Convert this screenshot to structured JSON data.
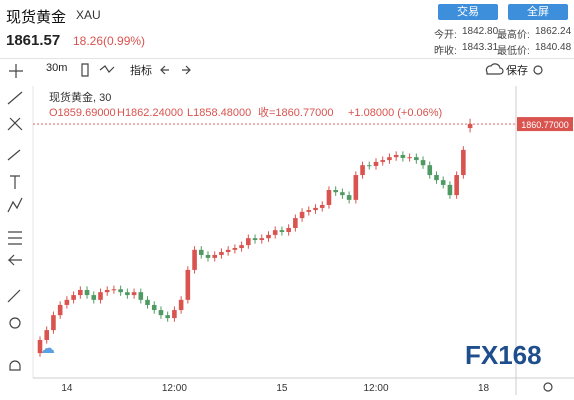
{
  "header": {
    "title": "现货黄金",
    "symbol": "XAU",
    "price": "1861.57",
    "change": "18.26(0.99%)",
    "buttons": [
      "交易",
      "全屏"
    ],
    "stats": [
      [
        "今开:",
        "1842.80",
        "最高价:",
        "1862.24"
      ],
      [
        "昨收:",
        "1843.31",
        "最低价:",
        "1840.48"
      ]
    ]
  },
  "toolbar": {
    "interval": "30m",
    "indicators": "指标",
    "save": "保存"
  },
  "chart_data": {
    "type": "candlestick",
    "legend_title": "现货黄金, 30",
    "legend_ohlc": [
      "O1859.69000",
      "H1862.24000",
      "L1858.48000",
      "收=1860.77000",
      "+1.08000 (+0.06%)"
    ],
    "last_price_label": "1860.77000",
    "watermark": "FX168",
    "up_color": "#d9534f",
    "down_color": "#4f9a63",
    "ylim": [
      1792,
      1866
    ],
    "categories": [
      null,
      null,
      null,
      null,
      "14",
      null,
      null,
      null,
      null,
      null,
      null,
      null,
      null,
      null,
      null,
      null,
      null,
      null,
      null,
      null,
      "12:00",
      null,
      null,
      null,
      null,
      null,
      null,
      null,
      null,
      null,
      null,
      null,
      null,
      null,
      null,
      null,
      "15",
      null,
      null,
      null,
      null,
      null,
      null,
      null,
      null,
      null,
      null,
      null,
      null,
      null,
      "12:00",
      null,
      null,
      null,
      null,
      null,
      null,
      null,
      null,
      null,
      null,
      null,
      null,
      null,
      null,
      null,
      "18"
    ],
    "open": [
      1798.0,
      1801.6,
      1804.3,
      1808.4,
      1811.2,
      1812.6,
      1813.9,
      1815.3,
      1813.9,
      1812.6,
      1814.7,
      1815.3,
      1815.5,
      1814.7,
      1813.9,
      1814.7,
      1812.6,
      1811.2,
      1809.8,
      1808.4,
      1807.6,
      1809.8,
      1812.6,
      1820.8,
      1826.3,
      1824.9,
      1824.1,
      1824.9,
      1825.7,
      1826.3,
      1826.8,
      1827.6,
      1829.5,
      1829.0,
      1829.5,
      1830.4,
      1831.7,
      1831.2,
      1832.3,
      1835.0,
      1836.7,
      1837.2,
      1837.8,
      1838.6,
      1842.7,
      1842.1,
      1841.3,
      1840.0,
      1846.8,
      1849.5,
      1849.3,
      1850.4,
      1850.9,
      1851.7,
      1852.3,
      1851.5,
      1851.7,
      1850.9,
      1849.5,
      1846.8,
      1845.4,
      1844.1,
      1841.3,
      1846.8,
      1859.69,
      null,
      null
    ],
    "high": [
      1802.6,
      1805.3,
      1809.4,
      1812.2,
      1813.6,
      1814.9,
      1816.3,
      1816.3,
      1814.9,
      1815.7,
      1816.3,
      1816.5,
      1816.5,
      1815.7,
      1815.7,
      1815.7,
      1813.6,
      1812.2,
      1810.8,
      1809.4,
      1810.8,
      1813.6,
      1821.8,
      1827.3,
      1827.3,
      1825.9,
      1825.9,
      1826.7,
      1827.3,
      1827.8,
      1828.6,
      1830.5,
      1830.5,
      1830.5,
      1831.4,
      1832.7,
      1832.7,
      1833.3,
      1836.0,
      1837.7,
      1838.2,
      1838.8,
      1839.6,
      1843.7,
      1843.7,
      1843.1,
      1842.3,
      1847.8,
      1850.5,
      1850.5,
      1851.4,
      1851.9,
      1852.7,
      1853.3,
      1853.3,
      1852.7,
      1852.7,
      1851.9,
      1850.5,
      1847.8,
      1846.4,
      1845.1,
      1847.8,
      1854.7,
      1862.24,
      null,
      null
    ],
    "low": [
      1797.0,
      1800.6,
      1803.3,
      1807.4,
      1810.2,
      1811.6,
      1812.9,
      1812.9,
      1811.6,
      1811.6,
      1813.7,
      1814.3,
      1813.7,
      1812.9,
      1812.9,
      1811.6,
      1810.2,
      1808.8,
      1807.4,
      1806.6,
      1806.6,
      1808.8,
      1811.6,
      1819.8,
      1823.9,
      1823.1,
      1823.1,
      1823.9,
      1824.7,
      1825.3,
      1825.8,
      1826.6,
      1828.0,
      1828.0,
      1828.5,
      1829.4,
      1830.2,
      1830.2,
      1831.3,
      1834.0,
      1835.7,
      1836.2,
      1836.8,
      1837.6,
      1841.1,
      1840.3,
      1839.0,
      1839.0,
      1845.8,
      1848.3,
      1848.3,
      1849.4,
      1849.9,
      1850.7,
      1850.5,
      1850.5,
      1849.9,
      1848.5,
      1845.8,
      1844.4,
      1843.1,
      1840.3,
      1840.3,
      1845.8,
      1858.48,
      null,
      null
    ],
    "close": [
      1801.6,
      1804.3,
      1808.4,
      1811.2,
      1812.6,
      1813.9,
      1815.3,
      1813.9,
      1812.6,
      1814.7,
      1815.3,
      1815.5,
      1814.7,
      1813.9,
      1814.7,
      1812.6,
      1811.2,
      1809.8,
      1808.4,
      1807.6,
      1809.8,
      1812.6,
      1820.8,
      1826.3,
      1824.9,
      1824.1,
      1824.9,
      1825.7,
      1826.3,
      1826.8,
      1827.6,
      1829.5,
      1829.0,
      1829.5,
      1830.4,
      1831.7,
      1831.2,
      1832.3,
      1835.0,
      1836.7,
      1837.2,
      1837.8,
      1838.6,
      1842.7,
      1842.1,
      1841.3,
      1840.0,
      1846.8,
      1849.5,
      1849.3,
      1850.4,
      1850.9,
      1851.7,
      1852.3,
      1851.5,
      1851.7,
      1850.9,
      1849.5,
      1846.8,
      1845.4,
      1844.1,
      1841.3,
      1846.8,
      1853.7,
      1860.77,
      null,
      null
    ]
  }
}
